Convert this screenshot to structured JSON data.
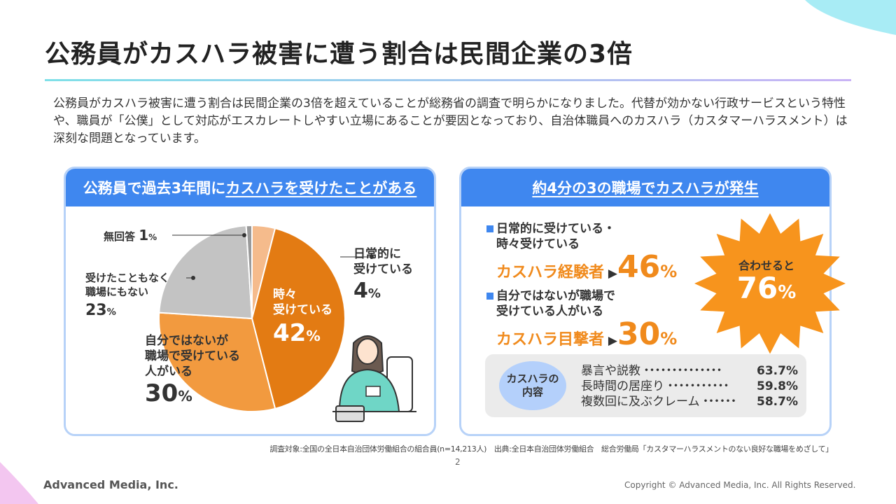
{
  "title": "公務員がカスハラ被害に遭う割合は民間企業の3倍",
  "body": "公務員がカスハラ被害に遭う割合は民間企業の3倍を超えていることが総務省の調査で明らかになりました。代替が効かない行政サービスという特性や、職員が「公僕」として対応がエスカレートしやすい立場にあることが要因となっており、自治体職員へのカスハラ（カスタマーハラスメント）は深刻な問題となっています。",
  "left_panel": {
    "header_plain": "公務員で過去3年間に",
    "header_underlined": "カスハラを受けたことがある"
  },
  "chart_data": {
    "type": "pie",
    "title": "公務員で過去3年間にカスハラを受けたことがある",
    "start": "12 o'clock, clockwise",
    "slices": [
      {
        "label_lines": [
          "日常的に",
          "受けている"
        ],
        "value": 4,
        "color": "#f5bb8c"
      },
      {
        "label_lines": [
          "時々",
          "受けている"
        ],
        "value": 42,
        "color": "#e37b13"
      },
      {
        "label_lines": [
          "自分ではないが",
          "職場で受けている",
          "人がいる"
        ],
        "value": 30,
        "color": "#f29a3f"
      },
      {
        "label_lines": [
          "受けたこともなく",
          "職場にもない"
        ],
        "value": 23,
        "color": "#c3c3c3"
      },
      {
        "label_lines": [
          "無回答"
        ],
        "value": 1,
        "color": "#999999"
      }
    ],
    "unit": "%"
  },
  "right_panel": {
    "header": "約4分の3の職場でカスハラが発生",
    "item1": {
      "lines": [
        "日常的に受けている・",
        "時々受けている"
      ],
      "category": "カスハラ経験者",
      "value": "46",
      "unit": "%"
    },
    "item2": {
      "lines": [
        "自分ではないが職場で",
        "受けている人がいる"
      ],
      "category": "カスハラ目撃者",
      "value": "30",
      "unit": "%"
    },
    "burst": {
      "label": "合わせると",
      "value": "76",
      "unit": "%"
    },
    "content_label": [
      "カスハラの",
      "内容"
    ],
    "contents": [
      {
        "name": "暴言や説教",
        "dots": "・・・・・・・・・・・・・・",
        "value": "63.7%"
      },
      {
        "name": "長時間の居座り",
        "dots": "・・・・・・・・・・・",
        "value": "59.8%"
      },
      {
        "name": "複数回に及ぶクレーム",
        "dots": "・・・・・・",
        "value": "58.7%"
      }
    ]
  },
  "note": "調査対象:全国の全日本自治団体労働組合の組合員(n=14,213人)　出典:全日本自治団体労働組合　総合労働局「カスタマーハラスメントのない良好な職場をめざして」",
  "page_number": "2",
  "logo": "Advanced Media, Inc.",
  "copyright": "Copyright © Advanced Media, Inc. All Rights Reserved."
}
